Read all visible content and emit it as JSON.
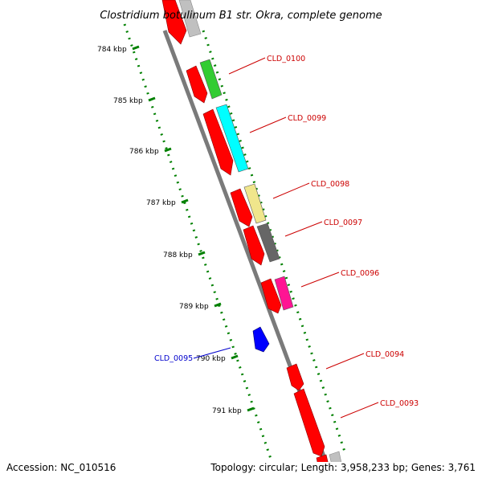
{
  "title": "Clostridium botulinum B1 str. Okra, complete genome",
  "footer": {
    "accession": "Accession: NC_010516",
    "topology": "Topology: circular; Length: 3,958,233 bp; Genes: 3,761"
  },
  "colors": {
    "backbone": "#808080",
    "tick": "#008000",
    "label_forward": "#cc0000",
    "label_reverse": "#0000cc"
  },
  "kbp_ticks": [
    {
      "label": "784 kbp"
    },
    {
      "label": "785 kbp"
    },
    {
      "label": "786 kbp"
    },
    {
      "label": "787 kbp"
    },
    {
      "label": "788 kbp"
    },
    {
      "label": "789 kbp"
    },
    {
      "label": "790 kbp"
    },
    {
      "label": "791 kbp"
    }
  ],
  "genes": [
    {
      "id": "CLD_0100",
      "strand": "reverse-right",
      "cog_color": "#33cc33"
    },
    {
      "id": "CLD_0099",
      "strand": "reverse-right",
      "cog_color": "#00ffff"
    },
    {
      "id": "CLD_0098",
      "strand": "reverse-right",
      "cog_color": "#f0e68c"
    },
    {
      "id": "CLD_0097",
      "strand": "reverse-right",
      "cog_color": "#666666"
    },
    {
      "id": "CLD_0096",
      "strand": "reverse-right",
      "cog_color": "#ff1493"
    },
    {
      "id": "CLD_0095",
      "strand": "forward-left",
      "cog_color": "#0000ff"
    },
    {
      "id": "CLD_0094",
      "strand": "reverse-right",
      "cog_color": "#ff0000"
    },
    {
      "id": "CLD_0093",
      "strand": "reverse-right",
      "cog_color": "#ff0000"
    }
  ]
}
